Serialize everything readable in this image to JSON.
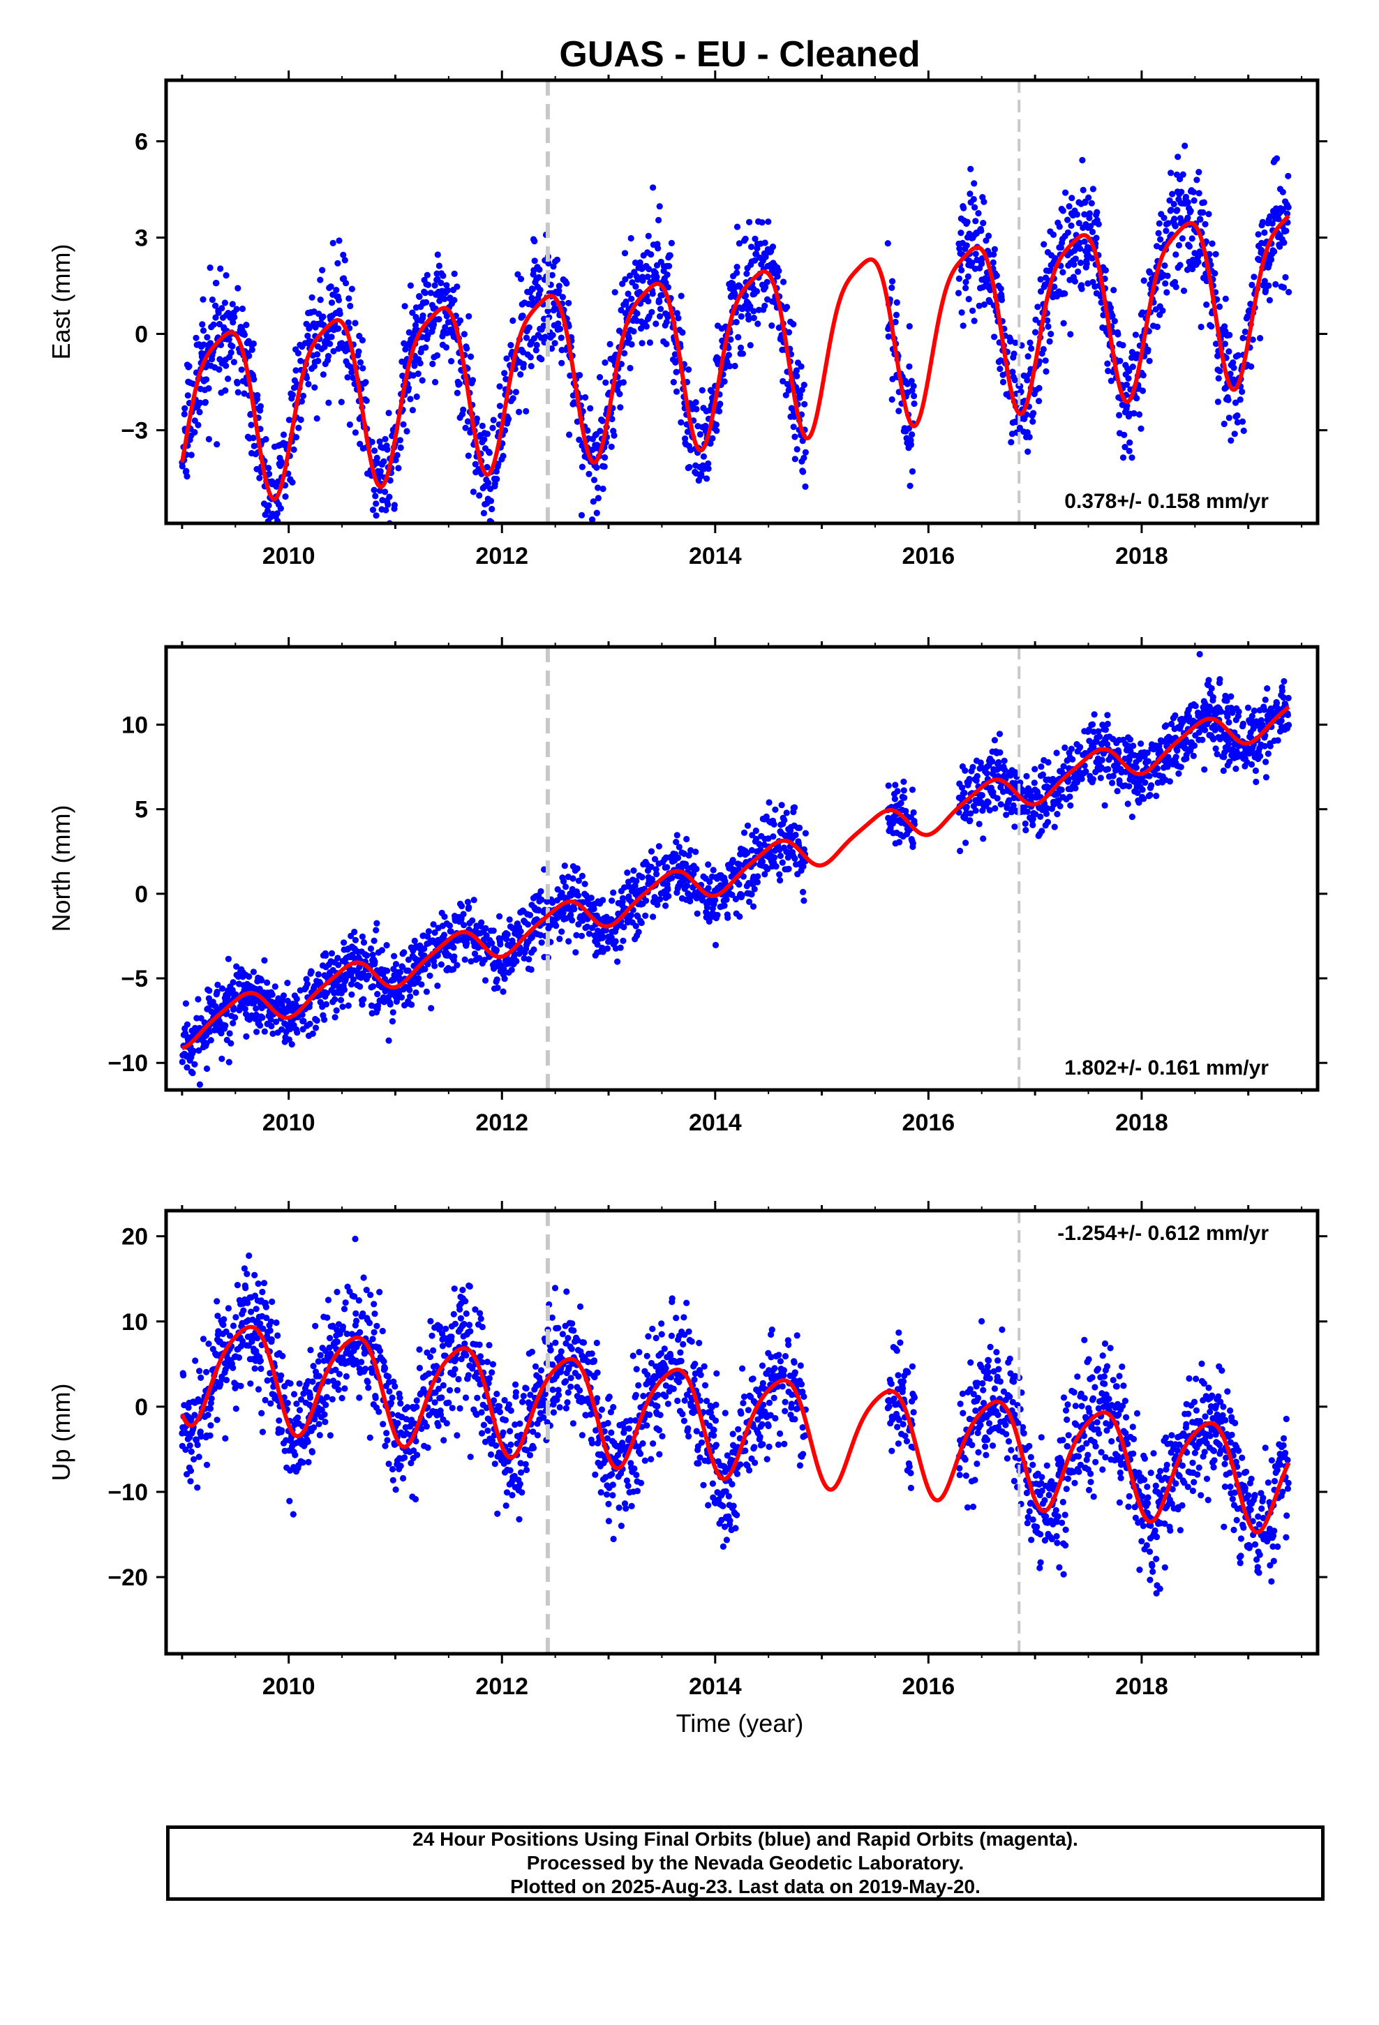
{
  "title": "GUAS  - EU - Cleaned",
  "x_axis_label": "Time (year)",
  "footer": {
    "line1": "24 Hour Positions Using Final Orbits (blue) and Rapid Orbits (magenta).",
    "line2": "Processed by the Nevada Geodetic Laboratory.",
    "line3": "Plotted on 2025-Aug-23. Last data on 2019-May-20."
  },
  "colors": {
    "data": "#0000ff",
    "fit": "#ff0000",
    "steps": "#c8c8c8",
    "frame": "#000000"
  },
  "chart_data": [
    {
      "type": "scatter",
      "name": "east",
      "ylabel": "East (mm)",
      "xlim": [
        2008.85,
        2019.65
      ],
      "ylim": [
        -5.9,
        7.9
      ],
      "xticks": [
        2010,
        2012,
        2014,
        2016,
        2018
      ],
      "yticks": [
        -3,
        0,
        3,
        6
      ],
      "ytick_labels": [
        "−3",
        "0",
        "3",
        "6"
      ],
      "rate_text": "0.378+/- 0.158 mm/yr",
      "rate_position": "bottom-right",
      "vertical_lines": [
        {
          "x": 2012.43,
          "style": "dashed"
        },
        {
          "x": 2016.85,
          "style": "dashed"
        }
      ],
      "fit": {
        "trend_mm_per_yr": 0.378,
        "offset": -0.4,
        "ref_year": 2014,
        "annual_amplitude": 2.6,
        "annual_peak_year_fraction": 0.38,
        "semiannual_amplitude": 0.6,
        "semiannual_phase_year_fraction": 0.1
      },
      "gaps": [
        [
          2014.85,
          2015.62
        ],
        [
          2015.87,
          2016.28
        ]
      ],
      "scatter_sd": 0.9,
      "approx_daily_positions": true
    },
    {
      "type": "scatter",
      "name": "north",
      "ylabel": "North (mm)",
      "xlim": [
        2008.85,
        2019.65
      ],
      "ylim": [
        -11.6,
        14.6
      ],
      "xticks": [
        2010,
        2012,
        2014,
        2016,
        2018
      ],
      "yticks": [
        -10,
        -5,
        0,
        5,
        10
      ],
      "ytick_labels": [
        "−10",
        "−5",
        "0",
        "5",
        "10"
      ],
      "rate_text": "1.802+/- 0.161 mm/yr",
      "rate_position": "bottom-right",
      "vertical_lines": [
        {
          "x": 2012.43,
          "style": "dashed"
        },
        {
          "x": 2016.85,
          "style": "dashed"
        }
      ],
      "fit": {
        "trend_mm_per_yr": 1.802,
        "offset": 1.0,
        "ref_year": 2014,
        "annual_amplitude": 1.0,
        "annual_peak_year_fraction": 0.55,
        "semiannual_amplitude": 0.2,
        "semiannual_phase_year_fraction": 0.2
      },
      "gaps": [
        [
          2014.85,
          2015.62
        ],
        [
          2015.87,
          2016.28
        ]
      ],
      "scatter_sd": 1.0,
      "approx_daily_positions": true
    },
    {
      "type": "scatter",
      "name": "up",
      "ylabel": "Up (mm)",
      "xlabel": "Time (year)",
      "xlim": [
        2008.85,
        2019.65
      ],
      "ylim": [
        -29,
        23
      ],
      "xticks": [
        2010,
        2012,
        2014,
        2016,
        2018
      ],
      "yticks": [
        -20,
        -10,
        0,
        10,
        20
      ],
      "ytick_labels": [
        "−20",
        "−10",
        "0",
        "10",
        "20"
      ],
      "rate_text": "-1.254+/- 0.612 mm/yr",
      "rate_position": "top-right",
      "vertical_lines": [
        {
          "x": 2012.43,
          "style": "dashed"
        },
        {
          "x": 2016.85,
          "style": "dashed"
        }
      ],
      "fit": {
        "trend_mm_per_yr": -1.254,
        "offset": -1.5,
        "ref_year": 2014,
        "annual_amplitude": 6.0,
        "annual_peak_year_fraction": 0.6,
        "semiannual_amplitude": 1.0,
        "semiannual_phase_year_fraction": 0.3
      },
      "gaps": [
        [
          2014.85,
          2015.62
        ],
        [
          2015.87,
          2016.28
        ]
      ],
      "scatter_sd": 3.6,
      "approx_daily_positions": true
    }
  ]
}
